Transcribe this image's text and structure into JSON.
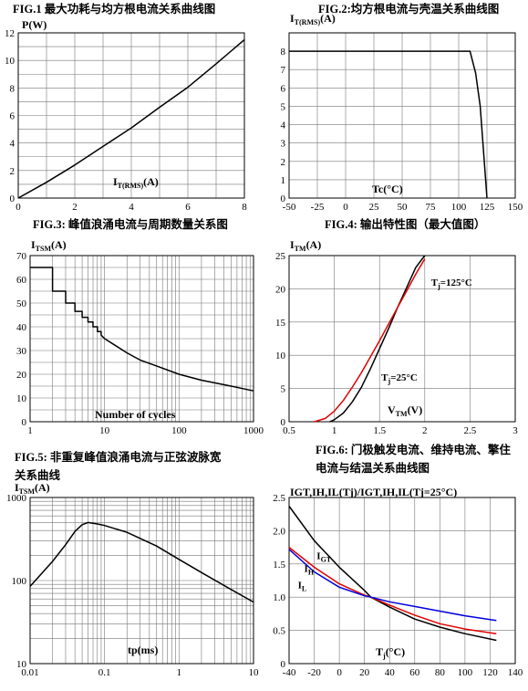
{
  "chart_data": [
    {
      "id": "fig1",
      "type": "line",
      "title": "FIG.1  最大功耗与均方根电流关系曲线图",
      "ylabel": "P(W)",
      "xlabel_main": "I",
      "xlabel_sub": "T(RMS)",
      "xlabel_end": "(A)",
      "xlim": [
        0,
        8
      ],
      "ylim": [
        0,
        12
      ],
      "xticks": [
        0,
        2,
        4,
        6,
        8
      ],
      "yticks": [
        0,
        2,
        4,
        6,
        8,
        10,
        12
      ],
      "xgrid": [
        0,
        1,
        2,
        3,
        4,
        5,
        6,
        7,
        8
      ],
      "ygrid": [
        0,
        1,
        2,
        3,
        4,
        5,
        6,
        7,
        8,
        9,
        10,
        11,
        12
      ],
      "series": [
        {
          "color": "#000000",
          "x": [
            0,
            1,
            2,
            3,
            4,
            5,
            6,
            7,
            8
          ],
          "y": [
            0,
            1.15,
            2.4,
            3.75,
            5.1,
            6.6,
            8.05,
            9.75,
            11.5
          ]
        }
      ]
    },
    {
      "id": "fig2",
      "type": "line",
      "title": "FIG.2:均方根电流与壳温关系曲线图",
      "ylabel_main": "I",
      "ylabel_sub": "T(RMS)",
      "ylabel_end": "(A)",
      "xlabel": "Tc(°C)",
      "xlim": [
        -50,
        150
      ],
      "ylim": [
        0,
        9
      ],
      "xticks": [
        -50,
        -25,
        0,
        25,
        50,
        75,
        100,
        125,
        150
      ],
      "yticks": [
        0,
        1,
        2,
        3,
        4,
        5,
        6,
        7,
        8
      ],
      "xgrid": [
        -50,
        -25,
        0,
        25,
        50,
        75,
        100,
        125,
        150
      ],
      "ygrid": [
        0,
        1,
        2,
        3,
        4,
        5,
        6,
        7,
        8
      ],
      "series": [
        {
          "color": "#000000",
          "x": [
            -50,
            110,
            115,
            119,
            125
          ],
          "y": [
            8,
            8,
            6.8,
            5,
            0
          ]
        }
      ]
    },
    {
      "id": "fig3",
      "type": "line",
      "title": "FIG.3:  峰值浪涌电流与周期数量关系图",
      "ylabel_main": "I",
      "ylabel_sub": "TSM",
      "ylabel_end": "(A)",
      "xlabel": "Number of cycles",
      "xscale": "log",
      "xlim": [
        1,
        1000
      ],
      "ylim": [
        0,
        70
      ],
      "xticks": [
        1,
        10,
        100,
        1000
      ],
      "yticks": [
        0,
        10,
        20,
        30,
        40,
        50,
        60,
        70
      ],
      "xgrid": [
        1,
        2,
        3,
        4,
        5,
        6,
        7,
        8,
        9,
        10,
        20,
        30,
        40,
        50,
        60,
        70,
        80,
        90,
        100,
        200,
        300,
        400,
        500,
        600,
        700,
        800,
        900,
        1000
      ],
      "ygrid": [
        0,
        5,
        10,
        15,
        20,
        25,
        30,
        35,
        40,
        45,
        50,
        55,
        60,
        65,
        70
      ],
      "series": [
        {
          "color": "#000000",
          "x": [
            1,
            2,
            2,
            3,
            3,
            4,
            4,
            5,
            5,
            6,
            6,
            7,
            7,
            8,
            8,
            9,
            9,
            10,
            20,
            30,
            50,
            100,
            200,
            500,
            1000
          ],
          "y": [
            65,
            65,
            55,
            55,
            50,
            50,
            46.5,
            46.5,
            44,
            44,
            42,
            42,
            40,
            40,
            38,
            38,
            36.5,
            35,
            29,
            26,
            23.5,
            20,
            17.5,
            15,
            13
          ]
        }
      ]
    },
    {
      "id": "fig4",
      "type": "line",
      "title": "FIG.4:  输出特性图（最大值图）",
      "ylabel_main": "I",
      "ylabel_sub": "TM",
      "ylabel_end": "(A)",
      "xlabel_main": "V",
      "xlabel_sub": "TM",
      "xlabel_end": "(V)",
      "xlim": [
        0.5,
        3.0
      ],
      "ylim": [
        0,
        25
      ],
      "xticks": [
        0.5,
        1.0,
        1.5,
        2.0,
        2.5,
        3.0
      ],
      "yticks": [
        0,
        5,
        10,
        15,
        20,
        25
      ],
      "xgrid": [
        0.5,
        1.0,
        1.5,
        2.0,
        2.5,
        3.0
      ],
      "ygrid": [
        0,
        5,
        10,
        15,
        20,
        25
      ],
      "annotations": [
        {
          "main": "T",
          "sub": "j",
          "end": "=125°C",
          "x": 2.07,
          "y": 20.5
        },
        {
          "main": "T",
          "sub": "j",
          "end": "=25°C",
          "x": 1.52,
          "y": 6.2
        }
      ],
      "series": [
        {
          "name": "Tj=25°C",
          "color": "#000000",
          "x": [
            0.95,
            1.0,
            1.1,
            1.2,
            1.3,
            1.4,
            1.5,
            1.6,
            1.7,
            1.8,
            1.9,
            2.0
          ],
          "y": [
            0,
            0.3,
            1.3,
            3,
            5.2,
            8,
            11,
            14,
            17.2,
            20.2,
            23.2,
            25
          ]
        },
        {
          "name": "Tj=125°C",
          "color": "#e00000",
          "x": [
            0.78,
            0.9,
            1.0,
            1.1,
            1.2,
            1.3,
            1.4,
            1.5,
            1.6,
            1.7,
            1.8,
            1.9,
            2.0
          ],
          "y": [
            0,
            0.5,
            1.6,
            3.2,
            5.2,
            7.4,
            9.8,
            12.2,
            14.7,
            17.2,
            19.7,
            22.2,
            24.5
          ]
        }
      ]
    },
    {
      "id": "fig5",
      "type": "line",
      "title_lines": [
        "FIG.5:  非重复峰值浪涌电流与正弦波脉宽",
        "关系曲线"
      ],
      "ylabel_main": "I",
      "ylabel_sub": "TSM",
      "ylabel_end": "(A)",
      "xlabel": "tp(ms)",
      "xscale": "log",
      "yscale": "log",
      "xlim": [
        0.01,
        10
      ],
      "ylim": [
        10,
        1000
      ],
      "xticks": [
        0.01,
        0.1,
        1,
        10
      ],
      "xtick_labels": [
        "0.01",
        "0.1",
        "1",
        "10"
      ],
      "yticks": [
        10,
        100,
        1000
      ],
      "xgrid": [
        0.01,
        0.02,
        0.03,
        0.04,
        0.05,
        0.06,
        0.07,
        0.08,
        0.09,
        0.1,
        0.2,
        0.3,
        0.4,
        0.5,
        0.6,
        0.7,
        0.8,
        0.9,
        1,
        2,
        3,
        4,
        5,
        6,
        7,
        8,
        9,
        10
      ],
      "ygrid": [
        10,
        20,
        30,
        40,
        50,
        60,
        70,
        80,
        90,
        100,
        200,
        300,
        400,
        500,
        600,
        700,
        800,
        900,
        1000
      ],
      "series": [
        {
          "color": "#000000",
          "x": [
            0.01,
            0.02,
            0.03,
            0.04,
            0.05,
            0.06,
            0.08,
            0.1,
            0.2,
            0.5,
            1,
            2,
            5,
            10
          ],
          "y": [
            85,
            170,
            270,
            390,
            470,
            500,
            480,
            460,
            380,
            260,
            180,
            125,
            78,
            55
          ]
        }
      ]
    },
    {
      "id": "fig6",
      "type": "line",
      "title_lines": [
        "FIG.6:  门极触发电流、维持电流、擎住",
        "电流与结温关系曲线图"
      ],
      "ylabel": "IGT,IH,IL(Tj)/IGT,IH,IL(Tj=25°C)",
      "xlabel_main": "T",
      "xlabel_sub": "j",
      "xlabel_end": "(°C)",
      "xlim": [
        -40,
        140
      ],
      "ylim": [
        0,
        2.5
      ],
      "xticks": [
        -40,
        -20,
        0,
        20,
        40,
        60,
        80,
        100,
        120,
        140
      ],
      "yticks": [
        0,
        0.5,
        1.0,
        1.5,
        2.0,
        2.5
      ],
      "ytick_labels": [
        "0",
        "0.5",
        "1.0",
        "1.5",
        "2.0",
        "2.5"
      ],
      "xgrid": [
        -40,
        -20,
        0,
        20,
        40,
        60,
        80,
        100,
        120,
        140
      ],
      "ygrid": [
        0,
        0.5,
        1.0,
        1.5,
        2.0,
        2.5
      ],
      "annotations": [
        {
          "main": "I",
          "sub": "GT",
          "end": "",
          "x": -18,
          "y": 1.57
        },
        {
          "main": "I",
          "sub": "H",
          "end": "",
          "x": -28,
          "y": 1.38
        },
        {
          "main": "I",
          "sub": "L",
          "end": "",
          "x": -33,
          "y": 1.13
        }
      ],
      "series": [
        {
          "name": "IGT",
          "color": "#000000",
          "x": [
            -40,
            -20,
            0,
            20,
            25,
            40,
            60,
            80,
            100,
            125
          ],
          "y": [
            2.37,
            1.85,
            1.45,
            1.1,
            1.0,
            0.85,
            0.67,
            0.55,
            0.45,
            0.35
          ]
        },
        {
          "name": "IH",
          "color": "#e00000",
          "x": [
            -40,
            -20,
            0,
            20,
            25,
            40,
            60,
            80,
            100,
            125
          ],
          "y": [
            1.75,
            1.45,
            1.2,
            1.03,
            1.0,
            0.88,
            0.73,
            0.6,
            0.52,
            0.45
          ]
        },
        {
          "name": "IL",
          "color": "#0000dd",
          "x": [
            -40,
            -20,
            0,
            20,
            25,
            40,
            60,
            80,
            100,
            125
          ],
          "y": [
            1.72,
            1.38,
            1.15,
            1.02,
            1.0,
            0.93,
            0.86,
            0.79,
            0.72,
            0.65
          ]
        }
      ]
    }
  ]
}
